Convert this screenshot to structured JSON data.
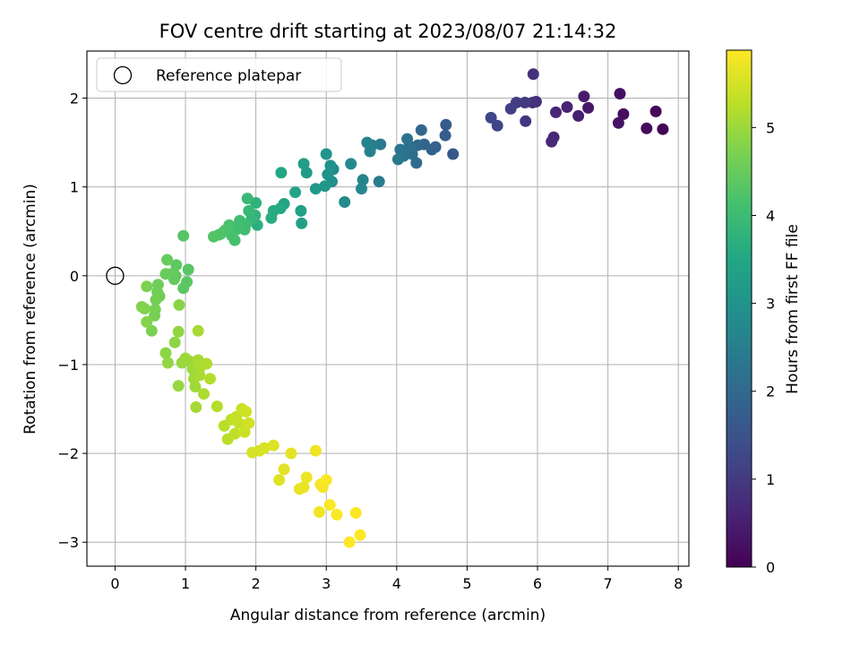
{
  "chart_data": {
    "type": "scatter",
    "title": "FOV centre drift starting at 2023/08/07 21:14:32",
    "xlabel": "Angular distance from reference (arcmin)",
    "ylabel": "Rotation from reference (arcmin)",
    "xlim": [
      -0.4,
      8.15
    ],
    "ylim": [
      -3.27,
      2.53
    ],
    "xticks": [
      0,
      1,
      2,
      3,
      4,
      5,
      6,
      7,
      8
    ],
    "yticks": [
      -3,
      -2,
      -1,
      0,
      1,
      2
    ],
    "xtick_labels": [
      "0",
      "1",
      "2",
      "3",
      "4",
      "5",
      "6",
      "7",
      "8"
    ],
    "ytick_labels": [
      "−3",
      "−2",
      "−1",
      "0",
      "1",
      "2"
    ],
    "grid": true,
    "legend": {
      "position": "top-left",
      "label": "Reference platepar"
    },
    "reference_point": {
      "x": 0,
      "y": 0
    },
    "colorbar": {
      "label": "Hours from first FF file",
      "range": [
        0,
        5.88
      ],
      "ticks": [
        0,
        1,
        2,
        3,
        4,
        5
      ],
      "tick_labels": [
        "0",
        "1",
        "2",
        "3",
        "4",
        "5"
      ],
      "colormap": "viridis"
    },
    "points": [
      [
        7.78,
        1.65,
        0.05
      ],
      [
        7.68,
        1.85,
        0.1
      ],
      [
        7.55,
        1.66,
        0.15
      ],
      [
        7.22,
        1.82,
        0.2
      ],
      [
        7.17,
        2.05,
        0.25
      ],
      [
        7.15,
        1.72,
        0.3
      ],
      [
        6.72,
        1.89,
        0.4
      ],
      [
        6.66,
        2.02,
        0.45
      ],
      [
        6.58,
        1.8,
        0.5
      ],
      [
        6.42,
        1.9,
        0.55
      ],
      [
        6.26,
        1.84,
        0.6
      ],
      [
        6.23,
        1.56,
        0.65
      ],
      [
        6.2,
        1.51,
        0.7
      ],
      [
        5.98,
        1.96,
        0.75
      ],
      [
        5.94,
        2.27,
        0.8
      ],
      [
        5.93,
        1.95,
        0.85
      ],
      [
        5.83,
        1.74,
        0.9
      ],
      [
        5.82,
        1.95,
        1.0
      ],
      [
        5.7,
        1.95,
        1.05
      ],
      [
        5.62,
        1.88,
        1.1
      ],
      [
        5.43,
        1.69,
        1.2
      ],
      [
        5.34,
        1.78,
        1.25
      ],
      [
        4.8,
        1.37,
        1.6
      ],
      [
        4.7,
        1.7,
        1.7
      ],
      [
        4.69,
        1.58,
        1.75
      ],
      [
        4.55,
        1.45,
        1.8
      ],
      [
        4.5,
        1.42,
        1.85
      ],
      [
        4.39,
        1.48,
        1.9
      ],
      [
        4.35,
        1.64,
        1.95
      ],
      [
        4.3,
        1.47,
        2.0
      ],
      [
        4.28,
        1.27,
        2.05
      ],
      [
        4.22,
        1.37,
        2.1
      ],
      [
        4.18,
        1.46,
        2.15
      ],
      [
        4.15,
        1.54,
        2.2
      ],
      [
        4.1,
        1.35,
        2.25
      ],
      [
        4.05,
        1.42,
        2.3
      ],
      [
        4.02,
        1.31,
        2.35
      ],
      [
        3.77,
        1.48,
        2.4
      ],
      [
        3.75,
        1.06,
        2.45
      ],
      [
        3.65,
        1.47,
        2.5
      ],
      [
        3.62,
        1.4,
        2.55
      ],
      [
        3.58,
        1.5,
        2.6
      ],
      [
        3.52,
        1.08,
        2.65
      ],
      [
        3.5,
        0.98,
        2.7
      ],
      [
        3.35,
        1.26,
        2.75
      ],
      [
        3.26,
        0.83,
        2.8
      ],
      [
        3.1,
        1.2,
        2.85
      ],
      [
        3.08,
        1.06,
        2.9
      ],
      [
        3.06,
        1.24,
        2.95
      ],
      [
        3.02,
        1.14,
        3.0
      ],
      [
        3.0,
        1.37,
        3.05
      ],
      [
        2.98,
        1.01,
        3.1
      ],
      [
        2.85,
        0.98,
        3.15
      ],
      [
        2.72,
        1.16,
        3.2
      ],
      [
        2.68,
        1.26,
        3.25
      ],
      [
        2.65,
        0.59,
        3.3
      ],
      [
        2.64,
        0.73,
        3.35
      ],
      [
        2.56,
        0.94,
        3.4
      ],
      [
        2.4,
        0.81,
        3.45
      ],
      [
        2.36,
        1.16,
        3.5
      ],
      [
        2.35,
        0.76,
        3.55
      ],
      [
        2.25,
        0.73,
        3.6
      ],
      [
        2.22,
        0.65,
        3.65
      ],
      [
        2.02,
        0.57,
        3.7
      ],
      [
        2.0,
        0.82,
        3.75
      ],
      [
        1.99,
        0.68,
        3.8
      ],
      [
        1.94,
        0.64,
        3.85
      ],
      [
        1.9,
        0.73,
        3.9
      ],
      [
        1.88,
        0.87,
        3.95
      ],
      [
        1.86,
        0.58,
        4.0
      ],
      [
        1.84,
        0.52,
        4.05
      ],
      [
        1.77,
        0.62,
        4.07
      ],
      [
        1.72,
        0.52,
        4.1
      ],
      [
        1.7,
        0.4,
        4.12
      ],
      [
        1.66,
        0.45,
        4.15
      ],
      [
        1.62,
        0.57,
        4.17
      ],
      [
        1.56,
        0.51,
        4.2
      ],
      [
        1.5,
        0.47,
        4.22
      ],
      [
        1.47,
        0.46,
        4.25
      ],
      [
        1.4,
        0.44,
        4.27
      ],
      [
        0.97,
        0.45,
        4.3
      ],
      [
        1.04,
        0.07,
        4.33
      ],
      [
        1.02,
        -0.07,
        4.35
      ],
      [
        0.97,
        -0.14,
        4.37
      ],
      [
        0.87,
        0.12,
        4.4
      ],
      [
        0.86,
        0.0,
        4.42
      ],
      [
        0.84,
        -0.04,
        4.45
      ],
      [
        0.8,
        0.02,
        4.47
      ],
      [
        0.74,
        0.18,
        4.5
      ],
      [
        0.72,
        0.02,
        4.52
      ],
      [
        0.63,
        -0.23,
        4.55
      ],
      [
        0.61,
        -0.1,
        4.57
      ],
      [
        0.6,
        -0.18,
        4.6
      ],
      [
        0.58,
        -0.27,
        4.62
      ],
      [
        0.57,
        -0.38,
        4.65
      ],
      [
        0.56,
        -0.45,
        4.67
      ],
      [
        0.52,
        -0.62,
        4.7
      ],
      [
        0.45,
        -0.12,
        4.72
      ],
      [
        0.42,
        -0.37,
        4.75
      ],
      [
        0.38,
        -0.35,
        4.77
      ],
      [
        0.45,
        -0.52,
        4.8
      ],
      [
        0.91,
        -0.33,
        4.83
      ],
      [
        0.72,
        -0.87,
        4.85
      ],
      [
        0.85,
        -0.75,
        4.87
      ],
      [
        0.9,
        -0.63,
        4.9
      ],
      [
        0.75,
        -0.98,
        4.92
      ],
      [
        0.9,
        -1.24,
        4.95
      ],
      [
        0.95,
        -0.98,
        4.97
      ],
      [
        1.0,
        -0.93,
        5.0
      ],
      [
        1.05,
        -0.96,
        5.0
      ],
      [
        1.1,
        -1.05,
        5.02
      ],
      [
        1.12,
        -1.16,
        5.05
      ],
      [
        1.14,
        -1.25,
        5.05
      ],
      [
        1.15,
        -1.48,
        5.07
      ],
      [
        1.18,
        -0.95,
        5.1
      ],
      [
        1.18,
        -0.62,
        5.1
      ],
      [
        1.2,
        -1.12,
        5.12
      ],
      [
        1.22,
        -1.02,
        5.15
      ],
      [
        1.26,
        -1.33,
        5.15
      ],
      [
        1.3,
        -0.99,
        5.17
      ],
      [
        1.35,
        -1.16,
        5.2
      ],
      [
        1.45,
        -1.47,
        5.22
      ],
      [
        1.55,
        -1.69,
        5.25
      ],
      [
        1.6,
        -1.84,
        5.27
      ],
      [
        1.65,
        -1.62,
        5.3
      ],
      [
        1.7,
        -1.78,
        5.32
      ],
      [
        1.72,
        -1.59,
        5.35
      ],
      [
        1.76,
        -1.66,
        5.37
      ],
      [
        1.8,
        -1.5,
        5.4
      ],
      [
        1.84,
        -1.76,
        5.42
      ],
      [
        1.86,
        -1.53,
        5.45
      ],
      [
        1.9,
        -1.66,
        5.47
      ],
      [
        1.95,
        -1.99,
        5.5
      ],
      [
        2.05,
        -1.97,
        5.52
      ],
      [
        2.12,
        -1.94,
        5.55
      ],
      [
        2.25,
        -1.91,
        5.57
      ],
      [
        2.33,
        -2.3,
        5.6
      ],
      [
        2.4,
        -2.18,
        5.62
      ],
      [
        2.5,
        -2.0,
        5.65
      ],
      [
        2.62,
        -2.4,
        5.67
      ],
      [
        2.68,
        -2.38,
        5.7
      ],
      [
        2.72,
        -2.27,
        5.72
      ],
      [
        2.85,
        -1.97,
        5.75
      ],
      [
        2.9,
        -2.66,
        5.77
      ],
      [
        2.92,
        -2.35,
        5.8
      ],
      [
        2.95,
        -2.38,
        5.82
      ],
      [
        3.0,
        -2.3,
        5.85
      ],
      [
        3.05,
        -2.58,
        5.85
      ],
      [
        3.15,
        -2.69,
        5.86
      ],
      [
        3.42,
        -2.67,
        5.87
      ],
      [
        3.48,
        -2.92,
        5.87
      ],
      [
        3.33,
        -3.0,
        5.88
      ]
    ]
  }
}
